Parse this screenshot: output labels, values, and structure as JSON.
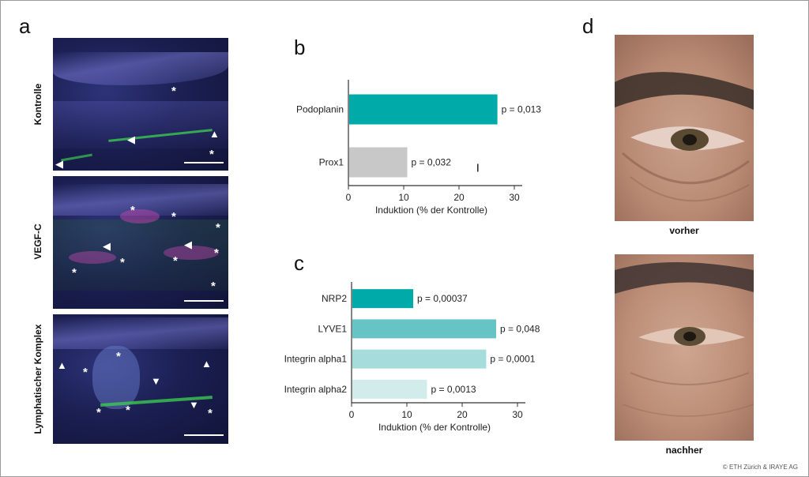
{
  "panels": {
    "a": {
      "letter": "a",
      "rows": [
        "Kontrolle",
        "VEGF-C",
        "Lymphatischer Komplex"
      ]
    },
    "b": {
      "letter": "b"
    },
    "c": {
      "letter": "c"
    },
    "d": {
      "letter": "d",
      "before_label": "vorher",
      "after_label": "nachher"
    }
  },
  "copyright": "© ETH Zürich & IRAYE AG",
  "chart_data": [
    {
      "type": "bar",
      "orientation": "horizontal",
      "panel": "b",
      "categories": [
        "Podoplanin",
        "Prox1"
      ],
      "values": [
        26.8,
        10.5
      ],
      "colors": [
        "#00aaa9",
        "#c8c8c8"
      ],
      "annotations": [
        "p = 0,013",
        "p = 0,032"
      ],
      "xlabel": "Induktion (% der Kontrolle)",
      "xlim": [
        0,
        30
      ],
      "xticks": [
        0,
        10,
        20,
        30
      ],
      "error_bars": [
        null,
        23.4
      ]
    },
    {
      "type": "bar",
      "orientation": "horizontal",
      "panel": "c",
      "categories": [
        "NRP2",
        "LYVE1",
        "Integrin alpha1",
        "Integrin alpha2"
      ],
      "values": [
        11.0,
        26.0,
        24.2,
        13.5
      ],
      "colors": [
        "#00aaa9",
        "#66c4c4",
        "#a6dcdc",
        "#d2ecec"
      ],
      "annotations": [
        "p = 0,00037",
        "p = 0,048",
        "p = 0,0001",
        "p = 0,0013"
      ],
      "xlabel": "Induktion (% der Kontrolle)",
      "xlim": [
        0,
        30
      ],
      "xticks": [
        0,
        10,
        20,
        30
      ]
    }
  ]
}
